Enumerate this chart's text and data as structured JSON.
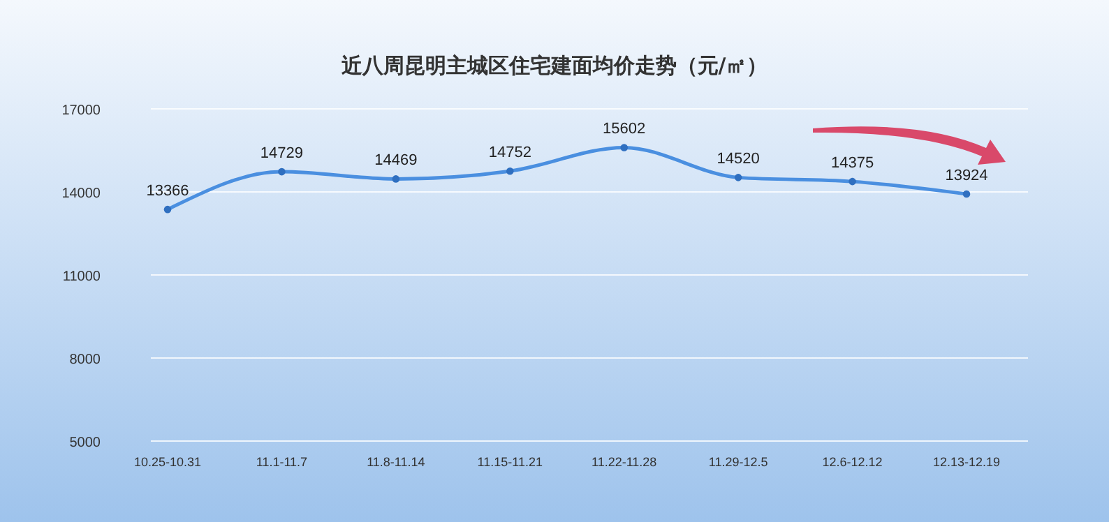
{
  "chart_data": {
    "type": "line",
    "title": "近八周昆明主城区住宅建面均价走势（元/㎡）",
    "categories": [
      "10.25-10.31",
      "11.1-11.7",
      "11.8-11.14",
      "11.15-11.21",
      "11.22-11.28",
      "11.29-12.5",
      "12.6-12.12",
      "12.13-12.19"
    ],
    "series": [
      {
        "color": "#4a8fe0",
        "values": [
          13366,
          14729,
          14469,
          14752,
          15602,
          14520,
          14375,
          13924
        ]
      }
    ],
    "ylim": [
      5000,
      17000
    ],
    "yticks": [
      5000,
      8000,
      11000,
      14000,
      17000
    ],
    "grid": "y",
    "data_labels": true,
    "marker": "circle"
  }
}
